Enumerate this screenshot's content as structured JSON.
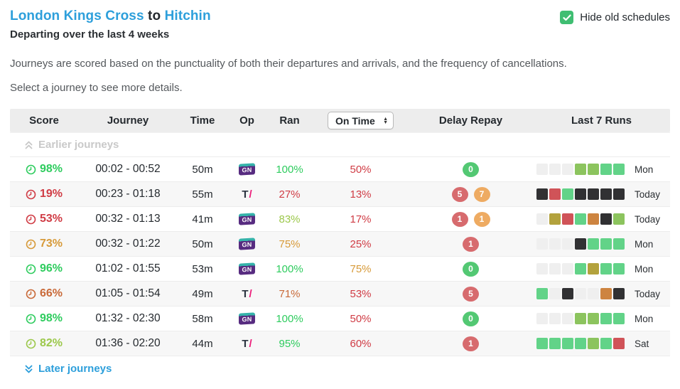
{
  "header": {
    "origin": "London Kings Cross",
    "to_word": "to",
    "destination": "Hitchin",
    "subtitle": "Departing over the last 4 weeks",
    "hide_old_label": "Hide old schedules",
    "hide_old_checked": true
  },
  "intro": {
    "line1": "Journeys are scored based on the punctuality of both their departures and arrivals, and the frequency of cancellations.",
    "line2": "Select a journey to see more details."
  },
  "table": {
    "columns": {
      "score": "Score",
      "journey": "Journey",
      "time": "Time",
      "op": "Op",
      "ran": "Ran",
      "on_time_filter": "On Time",
      "delay_repay": "Delay Repay",
      "last7": "Last 7 Runs"
    },
    "earlier_label": "Earlier journeys",
    "later_label": "Later journeys",
    "op_labels": {
      "GN": "GN",
      "TL": "T/"
    },
    "rows": [
      {
        "score": "98%",
        "score_tone": "green",
        "journey": "00:02 - 00:52",
        "duration": "50m",
        "op": "GN",
        "ran": "100%",
        "ran_tone": "green",
        "on_time": "50%",
        "on_time_tone": "red",
        "badges": [
          {
            "value": "0",
            "tone": "green"
          }
        ],
        "runs": [
          "empty",
          "empty",
          "empty",
          "yellowgreen",
          "yellowgreen",
          "green",
          "green"
        ],
        "day": "Mon"
      },
      {
        "score": "19%",
        "score_tone": "red",
        "journey": "00:23 - 01:18",
        "duration": "55m",
        "op": "TL",
        "ran": "27%",
        "ran_tone": "red",
        "on_time": "13%",
        "on_time_tone": "red",
        "badges": [
          {
            "value": "5",
            "tone": "red"
          },
          {
            "value": "7",
            "tone": "orange"
          }
        ],
        "runs": [
          "black",
          "red",
          "green",
          "black",
          "black",
          "black",
          "black"
        ],
        "day": "Today"
      },
      {
        "score": "53%",
        "score_tone": "red",
        "journey": "00:32 - 01:13",
        "duration": "41m",
        "op": "GN",
        "ran": "83%",
        "ran_tone": "lime",
        "on_time": "17%",
        "on_time_tone": "red",
        "badges": [
          {
            "value": "1",
            "tone": "red"
          },
          {
            "value": "1",
            "tone": "orange"
          }
        ],
        "runs": [
          "empty",
          "olive",
          "red",
          "green",
          "orange",
          "black",
          "yellowgreen"
        ],
        "day": "Today"
      },
      {
        "score": "73%",
        "score_tone": "gold",
        "journey": "00:32 - 01:22",
        "duration": "50m",
        "op": "GN",
        "ran": "75%",
        "ran_tone": "gold",
        "on_time": "25%",
        "on_time_tone": "red",
        "badges": [
          {
            "value": "1",
            "tone": "red"
          }
        ],
        "runs": [
          "empty",
          "empty",
          "empty",
          "black",
          "green",
          "green",
          "green"
        ],
        "day": "Mon"
      },
      {
        "score": "96%",
        "score_tone": "green",
        "journey": "01:02 - 01:55",
        "duration": "53m",
        "op": "GN",
        "ran": "100%",
        "ran_tone": "green",
        "on_time": "75%",
        "on_time_tone": "gold",
        "badges": [
          {
            "value": "0",
            "tone": "green"
          }
        ],
        "runs": [
          "empty",
          "empty",
          "empty",
          "green",
          "olive",
          "green",
          "green"
        ],
        "day": "Mon"
      },
      {
        "score": "66%",
        "score_tone": "orange",
        "journey": "01:05 - 01:54",
        "duration": "49m",
        "op": "TL",
        "ran": "71%",
        "ran_tone": "orange",
        "on_time": "53%",
        "on_time_tone": "red",
        "badges": [
          {
            "value": "5",
            "tone": "red"
          }
        ],
        "runs": [
          "green",
          "empty",
          "black",
          "empty",
          "empty",
          "orange",
          "black"
        ],
        "day": "Today"
      },
      {
        "score": "98%",
        "score_tone": "green",
        "journey": "01:32 - 02:30",
        "duration": "58m",
        "op": "GN",
        "ran": "100%",
        "ran_tone": "green",
        "on_time": "50%",
        "on_time_tone": "red",
        "badges": [
          {
            "value": "0",
            "tone": "green"
          }
        ],
        "runs": [
          "empty",
          "empty",
          "empty",
          "yellowgreen",
          "yellowgreen",
          "green",
          "green"
        ],
        "day": "Mon"
      },
      {
        "score": "82%",
        "score_tone": "lime",
        "journey": "01:36 - 02:20",
        "duration": "44m",
        "op": "TL",
        "ran": "95%",
        "ran_tone": "green",
        "on_time": "60%",
        "on_time_tone": "red",
        "badges": [
          {
            "value": "1",
            "tone": "red"
          }
        ],
        "runs": [
          "green",
          "green",
          "green",
          "green",
          "yellowgreen",
          "green",
          "red"
        ],
        "day": "Sat"
      }
    ]
  },
  "colors": {
    "link_blue": "#2d9fdb",
    "checkbox_green": "#3fbe72",
    "header_bg": "#ededed",
    "alt_row_bg": "#f7f7f7",
    "text_tones": {
      "green": "#2ecc5e",
      "red": "#d03c45",
      "gold": "#d79a39",
      "orange": "#c96a39",
      "lime": "#9cc84b"
    },
    "badge_tones": {
      "green": "#53c873",
      "red": "#d76b6e",
      "orange": "#eeab62"
    },
    "run_tones": {
      "empty": "#efefef",
      "green": "#62d388",
      "yellowgreen": "#8cc45e",
      "olive": "#b3a23d",
      "orange": "#cd8440",
      "red": "#d05358",
      "black": "#313133"
    }
  }
}
